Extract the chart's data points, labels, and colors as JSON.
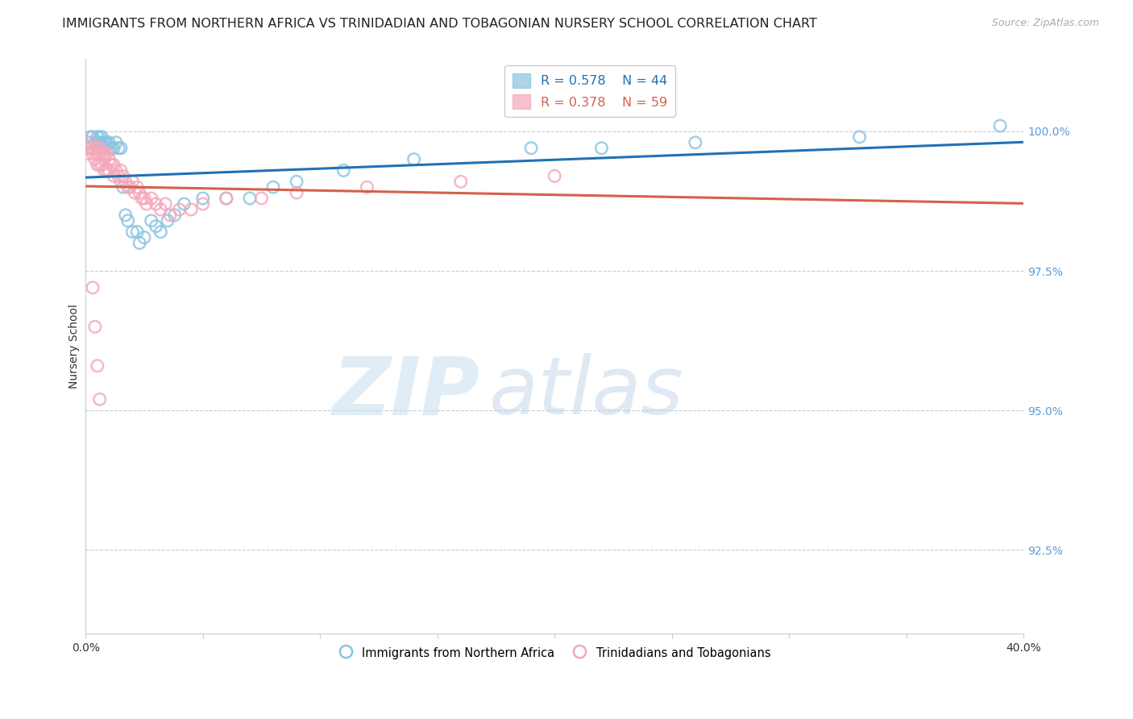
{
  "title": "IMMIGRANTS FROM NORTHERN AFRICA VS TRINIDADIAN AND TOBAGONIAN NURSERY SCHOOL CORRELATION CHART",
  "source": "Source: ZipAtlas.com",
  "ylabel": "Nursery School",
  "ytick_labels": [
    "100.0%",
    "97.5%",
    "95.0%",
    "92.5%"
  ],
  "ytick_values": [
    1.0,
    0.975,
    0.95,
    0.925
  ],
  "xlim": [
    0.0,
    0.4
  ],
  "ylim": [
    0.91,
    1.013
  ],
  "legend_blue_r": "0.578",
  "legend_blue_n": "44",
  "legend_pink_r": "0.378",
  "legend_pink_n": "59",
  "legend_label_blue": "Immigrants from Northern Africa",
  "legend_label_pink": "Trinidadians and Tobagonians",
  "blue_scatter_color": "#89c4e1",
  "pink_scatter_color": "#f4a7b9",
  "line_blue_color": "#2171b5",
  "line_pink_color": "#d6604d",
  "right_tick_color": "#5b9bd5",
  "title_fontsize": 11.5,
  "axis_label_fontsize": 10,
  "tick_fontsize": 10,
  "watermark_zip": "ZIP",
  "watermark_atlas": "atlas",
  "blue_scatter_x": [
    0.001,
    0.002,
    0.003,
    0.004,
    0.005,
    0.005,
    0.006,
    0.006,
    0.007,
    0.007,
    0.008,
    0.008,
    0.009,
    0.01,
    0.011,
    0.012,
    0.013,
    0.014,
    0.015,
    0.016,
    0.017,
    0.018,
    0.02,
    0.022,
    0.023,
    0.025,
    0.028,
    0.03,
    0.032,
    0.035,
    0.038,
    0.042,
    0.05,
    0.06,
    0.07,
    0.08,
    0.09,
    0.11,
    0.14,
    0.19,
    0.22,
    0.26,
    0.33,
    0.39
  ],
  "blue_scatter_y": [
    0.998,
    0.999,
    0.999,
    0.998,
    0.999,
    0.998,
    0.999,
    0.998,
    0.999,
    0.998,
    0.998,
    0.997,
    0.998,
    0.998,
    0.997,
    0.997,
    0.998,
    0.997,
    0.997,
    0.99,
    0.985,
    0.984,
    0.982,
    0.982,
    0.98,
    0.981,
    0.984,
    0.983,
    0.982,
    0.984,
    0.985,
    0.987,
    0.988,
    0.988,
    0.988,
    0.99,
    0.991,
    0.993,
    0.995,
    0.997,
    0.997,
    0.998,
    0.999,
    1.001
  ],
  "pink_scatter_x": [
    0.001,
    0.001,
    0.002,
    0.002,
    0.003,
    0.003,
    0.004,
    0.004,
    0.005,
    0.005,
    0.005,
    0.006,
    0.006,
    0.006,
    0.007,
    0.007,
    0.008,
    0.008,
    0.008,
    0.009,
    0.009,
    0.01,
    0.01,
    0.011,
    0.012,
    0.012,
    0.013,
    0.014,
    0.015,
    0.015,
    0.016,
    0.017,
    0.018,
    0.019,
    0.02,
    0.021,
    0.022,
    0.023,
    0.024,
    0.025,
    0.026,
    0.028,
    0.03,
    0.032,
    0.034,
    0.036,
    0.04,
    0.045,
    0.05,
    0.06,
    0.075,
    0.09,
    0.12,
    0.16,
    0.2,
    0.003,
    0.004,
    0.005,
    0.006
  ],
  "pink_scatter_y": [
    0.997,
    0.996,
    0.998,
    0.997,
    0.997,
    0.996,
    0.997,
    0.995,
    0.997,
    0.996,
    0.994,
    0.997,
    0.996,
    0.994,
    0.996,
    0.994,
    0.996,
    0.995,
    0.993,
    0.996,
    0.993,
    0.995,
    0.993,
    0.994,
    0.994,
    0.992,
    0.993,
    0.992,
    0.993,
    0.991,
    0.992,
    0.991,
    0.99,
    0.99,
    0.991,
    0.989,
    0.99,
    0.989,
    0.988,
    0.988,
    0.987,
    0.988,
    0.987,
    0.986,
    0.987,
    0.985,
    0.986,
    0.986,
    0.987,
    0.988,
    0.988,
    0.989,
    0.99,
    0.991,
    0.992,
    0.972,
    0.965,
    0.958,
    0.952
  ]
}
